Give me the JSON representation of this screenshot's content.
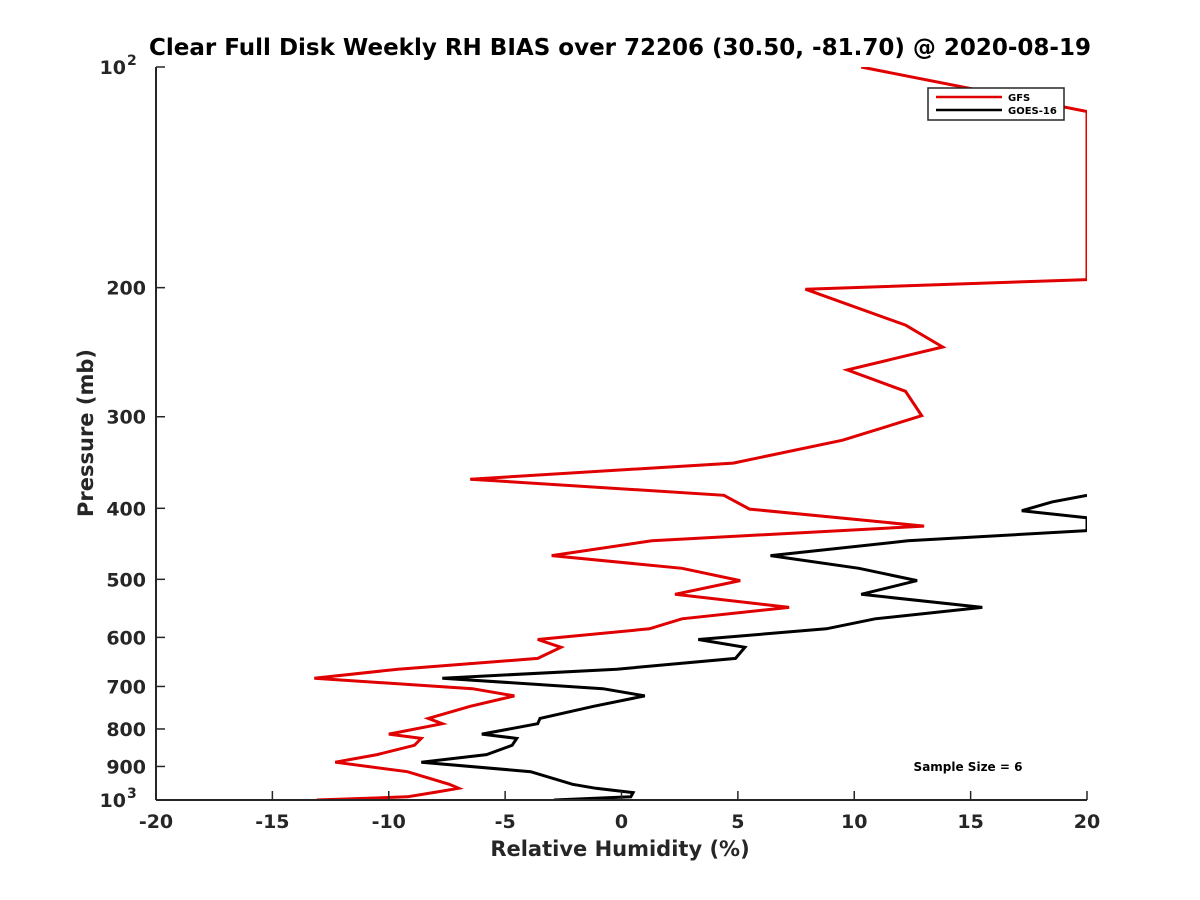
{
  "chart_data": {
    "type": "line",
    "title": "Clear Full Disk Weekly RH BIAS over 72206 (30.50, -81.70) @ 2020-08-19",
    "xlabel": "Relative Humidity (%)",
    "ylabel": "Pressure (mb)",
    "xlim": [
      -20,
      20
    ],
    "ylim": [
      1000,
      100
    ],
    "yscale": "log",
    "y_reversed": true,
    "grid": false,
    "x_ticks": [
      -20,
      -15,
      -10,
      -5,
      0,
      5,
      10,
      15,
      20
    ],
    "x_tick_labels": [
      "-20",
      "-15",
      "-10",
      "-5",
      "0",
      "5",
      "10",
      "15",
      "20"
    ],
    "y_ticks": [
      100,
      200,
      300,
      400,
      500,
      600,
      700,
      800,
      900,
      1000
    ],
    "y_tick_labels": [
      {
        "base": "10",
        "exp": "2"
      },
      {
        "base": "200",
        "exp": ""
      },
      {
        "base": "300",
        "exp": ""
      },
      {
        "base": "400",
        "exp": ""
      },
      {
        "base": "500",
        "exp": ""
      },
      {
        "base": "600",
        "exp": ""
      },
      {
        "base": "700",
        "exp": ""
      },
      {
        "base": "800",
        "exp": ""
      },
      {
        "base": "900",
        "exp": ""
      },
      {
        "base": "10",
        "exp": "3"
      }
    ],
    "legend_position": "top-right",
    "annotation": "Sample Size = 6",
    "series": [
      {
        "name": "GFS",
        "color": "#e00000",
        "points": [
          [
            10.3,
            100
          ],
          [
            20,
            115
          ],
          [
            20,
            195
          ],
          [
            7.9,
            201
          ],
          [
            12.2,
            225
          ],
          [
            13.8,
            241
          ],
          [
            9.7,
            259
          ],
          [
            12.2,
            277
          ],
          [
            12.9,
            299
          ],
          [
            9.5,
            323
          ],
          [
            4.8,
            347
          ],
          [
            -6.5,
            365
          ],
          [
            4.4,
            384
          ],
          [
            5.5,
            401
          ],
          [
            13,
            423
          ],
          [
            1.3,
            443
          ],
          [
            -3.0,
            464
          ],
          [
            2.6,
            483
          ],
          [
            5.1,
            502
          ],
          [
            2.3,
            524
          ],
          [
            7.2,
            546
          ],
          [
            2.6,
            566
          ],
          [
            1.2,
            584
          ],
          [
            -3.6,
            604
          ],
          [
            -2.6,
            619
          ],
          [
            -3.6,
            641
          ],
          [
            -9.6,
            663
          ],
          [
            -13.2,
            682
          ],
          [
            -6.4,
            705
          ],
          [
            -4.6,
            721
          ],
          [
            -6.5,
            745
          ],
          [
            -8.3,
            774
          ],
          [
            -7.7,
            787
          ],
          [
            -10.0,
            813
          ],
          [
            -8.6,
            824
          ],
          [
            -8.9,
            842
          ],
          [
            -10.5,
            867
          ],
          [
            -12.3,
            888
          ],
          [
            -9.2,
            915
          ],
          [
            -7.4,
            952
          ],
          [
            -7.0,
            964
          ],
          [
            -8.1,
            977
          ],
          [
            -9.2,
            990
          ],
          [
            -13.1,
            1000
          ]
        ]
      },
      {
        "name": "GOES-16",
        "color": "#000000",
        "points": [
          [
            20,
            384
          ],
          [
            18.5,
            392
          ],
          [
            17.2,
            403
          ],
          [
            20,
            412
          ],
          [
            20,
            429
          ],
          [
            12.3,
            443
          ],
          [
            6.4,
            464
          ],
          [
            10.2,
            483
          ],
          [
            12.7,
            502
          ],
          [
            10.3,
            524
          ],
          [
            15.5,
            546
          ],
          [
            10.9,
            566
          ],
          [
            8.8,
            584
          ],
          [
            3.3,
            604
          ],
          [
            5.3,
            619
          ],
          [
            4.9,
            641
          ],
          [
            -0.2,
            663
          ],
          [
            -7.7,
            682
          ],
          [
            -0.8,
            705
          ],
          [
            1.0,
            721
          ],
          [
            -1.2,
            745
          ],
          [
            -3.5,
            774
          ],
          [
            -3.6,
            787
          ],
          [
            -6.0,
            813
          ],
          [
            -4.5,
            824
          ],
          [
            -4.7,
            842
          ],
          [
            -5.8,
            867
          ],
          [
            -8.6,
            888
          ],
          [
            -3.9,
            915
          ],
          [
            -2.1,
            952
          ],
          [
            -1.1,
            964
          ],
          [
            0.5,
            977
          ],
          [
            0.4,
            990
          ],
          [
            -2.9,
            1000
          ]
        ]
      }
    ]
  }
}
